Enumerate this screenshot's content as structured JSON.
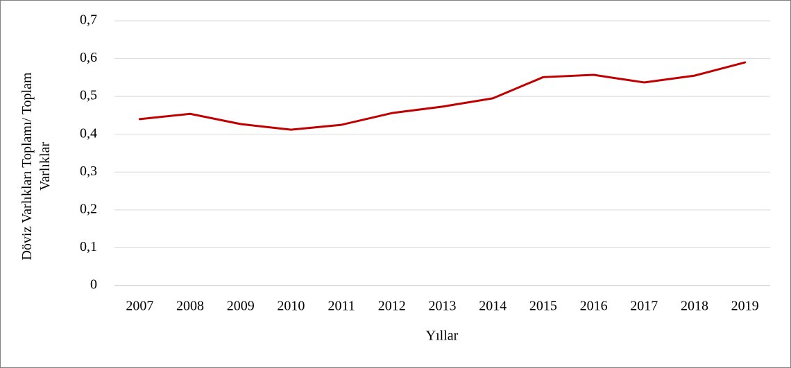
{
  "chart_data": {
    "type": "line",
    "xlabel": "Yıllar",
    "ylabel": "Döviz Varlıkları Toplamı/ Toplam Varlıklar",
    "categories": [
      "2007",
      "2008",
      "2009",
      "2010",
      "2011",
      "2012",
      "2013",
      "2014",
      "2015",
      "2016",
      "2017",
      "2018",
      "2019"
    ],
    "series": [
      {
        "color": "#c00000",
        "values": [
          0.44,
          0.454,
          0.427,
          0.412,
          0.425,
          0.456,
          0.473,
          0.495,
          0.551,
          0.557,
          0.537,
          0.555,
          0.59
        ]
      }
    ],
    "ylim": [
      0,
      0.7
    ],
    "yticks": [
      0,
      {
        "value": 0.1,
        "label": "0,1"
      },
      {
        "value": 0.2,
        "label": "0,2"
      },
      {
        "value": 0.3,
        "label": "0,3"
      },
      {
        "value": 0.4,
        "label": "0,4"
      },
      {
        "value": 0.5,
        "label": "0,5"
      },
      {
        "value": 0.6,
        "label": "0,6"
      },
      {
        "value": 0.7,
        "label": "0,7"
      }
    ],
    "grid": true
  }
}
